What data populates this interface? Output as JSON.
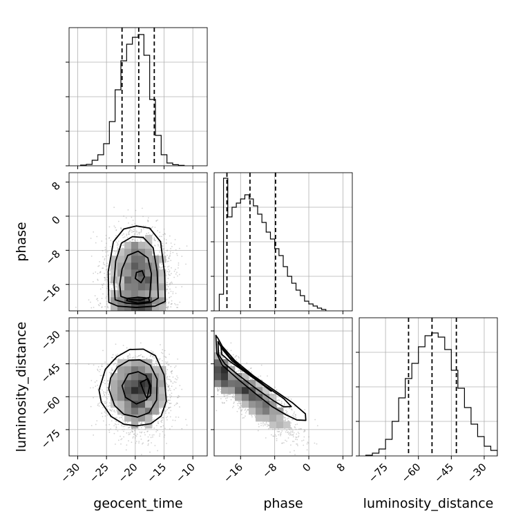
{
  "chart_data": {
    "type": "corner",
    "parameters": [
      "geocent_time",
      "phase",
      "luminosity_distance"
    ],
    "labels": {
      "geocent_time": "geocent_time",
      "phase": "phase",
      "luminosity_distance": "luminosity_distance"
    },
    "ranges": {
      "geocent_time": [
        -31.5,
        -7.5
      ],
      "phase": [
        -22.2,
        10.2
      ],
      "luminosity_distance": [
        -87,
        -24
      ]
    },
    "ticks": {
      "geocent_time": [
        -30,
        -25,
        -20,
        -15,
        -10
      ],
      "phase": [
        -16,
        -8,
        0,
        8
      ],
      "luminosity_distance": [
        -75,
        -60,
        -45,
        -30
      ]
    },
    "tick_labels": {
      "geocent_time": [
        "−30",
        "−25",
        "−20",
        "−15",
        "−10"
      ],
      "phase": [
        "−16",
        "−8",
        "0",
        "8"
      ],
      "luminosity_distance": [
        "−75",
        "−60",
        "−45",
        "−30"
      ]
    },
    "grid": true,
    "quantiles": {
      "geocent_time": [
        -22.3,
        -19.4,
        -16.7
      ],
      "phase": [
        -19.2,
        -13.8,
        -7.8
      ],
      "luminosity_distance": [
        -64.5,
        -53.8,
        -42.7
      ]
    },
    "histograms": {
      "geocent_time": {
        "edges": [
          -29.5,
          -28.5,
          -27.5,
          -26.5,
          -25.5,
          -24.5,
          -23.5,
          -22.5,
          -21.5,
          -20.5,
          -19.5,
          -18.5,
          -17.5,
          -16.5,
          -15.5,
          -14.5,
          -13.5,
          -12.5,
          -11.5
        ],
        "counts": [
          0.005,
          0.01,
          0.04,
          0.08,
          0.16,
          0.32,
          0.55,
          0.76,
          0.88,
          0.93,
          0.95,
          0.8,
          0.48,
          0.22,
          0.08,
          0.02,
          0.008,
          0.003
        ]
      },
      "phase": {
        "edges": [
          -21.0,
          -20.0,
          -19.0,
          -18.0,
          -17.0,
          -16.0,
          -15.0,
          -14.0,
          -13.0,
          -12.0,
          -11.0,
          -10.0,
          -9.0,
          -8.0,
          -7.0,
          -6.0,
          -5.0,
          -4.0,
          -3.0,
          -2.0,
          -1.0,
          0.0,
          1.0,
          2.0,
          3.0,
          4.0
        ],
        "counts": [
          0.12,
          0.96,
          0.68,
          0.75,
          0.78,
          0.81,
          0.84,
          0.81,
          0.76,
          0.7,
          0.64,
          0.57,
          0.52,
          0.45,
          0.4,
          0.32,
          0.25,
          0.2,
          0.15,
          0.11,
          0.07,
          0.05,
          0.035,
          0.02,
          0.01
        ]
      },
      "luminosity_distance": {
        "edges": [
          -84,
          -81,
          -78,
          -75,
          -72,
          -69,
          -66,
          -63,
          -60,
          -57,
          -54,
          -51,
          -48,
          -45,
          -42,
          -39,
          -36,
          -33,
          -30,
          -27,
          -24
        ],
        "counts": [
          0.005,
          0.02,
          0.05,
          0.12,
          0.25,
          0.42,
          0.56,
          0.67,
          0.79,
          0.87,
          0.89,
          0.86,
          0.77,
          0.62,
          0.49,
          0.35,
          0.23,
          0.14,
          0.07,
          0.04
        ]
      }
    },
    "pairs": [
      {
        "x": "geocent_time",
        "y": "phase",
        "contour_levels": [
          {
            "points": [
              [
                -24.6,
                -20.2
              ],
              [
                -23.0,
                -21.1
              ],
              [
                -19.8,
                -21.4
              ],
              [
                -16.6,
                -21.1
              ],
              [
                -14.8,
                -20.0
              ],
              [
                -14.9,
                -13.5
              ],
              [
                -15.6,
                -6.0
              ],
              [
                -17.5,
                -2.8
              ],
              [
                -19.8,
                -2.3
              ],
              [
                -22.0,
                -3.0
              ],
              [
                -23.8,
                -6.0
              ],
              [
                -24.7,
                -13.0
              ]
            ]
          },
          {
            "points": [
              [
                -23.5,
                -19.6
              ],
              [
                -21.5,
                -20.4
              ],
              [
                -19.6,
                -20.6
              ],
              [
                -17.4,
                -20.3
              ],
              [
                -16.0,
                -19.2
              ],
              [
                -16.2,
                -13.0
              ],
              [
                -16.9,
                -7.4
              ],
              [
                -18.6,
                -5.0
              ],
              [
                -20.5,
                -4.8
              ],
              [
                -22.4,
                -6.3
              ],
              [
                -23.4,
                -10.5
              ],
              [
                -23.7,
                -15.5
              ]
            ]
          },
          {
            "points": [
              [
                -22.5,
                -18.8
              ],
              [
                -20.8,
                -19.6
              ],
              [
                -19.1,
                -19.7
              ],
              [
                -17.5,
                -19.0
              ],
              [
                -17.2,
                -13.5
              ],
              [
                -17.8,
                -9.8
              ],
              [
                -19.5,
                -8.2
              ],
              [
                -21.3,
                -9.2
              ],
              [
                -22.3,
                -12.4
              ],
              [
                -22.7,
                -16.0
              ]
            ]
          },
          {
            "points": [
              [
                -21.5,
                -19.8
              ],
              [
                -19.5,
                -20.4
              ],
              [
                -17.5,
                -20.0
              ],
              [
                -17.7,
                -19.2
              ],
              [
                -19.5,
                -19.0
              ],
              [
                -21.3,
                -19.3
              ]
            ]
          },
          {
            "points": [
              [
                -20.0,
                -14.6
              ],
              [
                -19.0,
                -15.6
              ],
              [
                -18.4,
                -14.2
              ],
              [
                -18.8,
                -12.8
              ],
              [
                -19.8,
                -13.2
              ]
            ]
          }
        ]
      },
      {
        "x": "geocent_time",
        "y": "luminosity_distance",
        "contour_levels": [
          {
            "points": [
              [
                -26.3,
                -57.0
              ],
              [
                -25.9,
                -62.5
              ],
              [
                -24.2,
                -69.0
              ],
              [
                -22.0,
                -72.5
              ],
              [
                -19.8,
                -73.3
              ],
              [
                -17.3,
                -72.3
              ],
              [
                -15.5,
                -68.8
              ],
              [
                -14.6,
                -62.0
              ],
              [
                -15.0,
                -50.0
              ],
              [
                -16.5,
                -41.3
              ],
              [
                -18.6,
                -38.3
              ],
              [
                -21.0,
                -38.5
              ],
              [
                -23.2,
                -41.8
              ],
              [
                -25.2,
                -47.5
              ]
            ]
          },
          {
            "points": [
              [
                -24.6,
                -56.5
              ],
              [
                -23.6,
                -64.0
              ],
              [
                -22.0,
                -68.0
              ],
              [
                -19.6,
                -69.3
              ],
              [
                -17.6,
                -67.3
              ],
              [
                -16.3,
                -61.5
              ],
              [
                -16.2,
                -52.0
              ],
              [
                -17.4,
                -45.6
              ],
              [
                -19.2,
                -43.2
              ],
              [
                -21.1,
                -43.4
              ],
              [
                -23.1,
                -46.5
              ],
              [
                -24.3,
                -51.5
              ]
            ]
          },
          {
            "points": [
              [
                -22.3,
                -55.0
              ],
              [
                -21.7,
                -60.3
              ],
              [
                -19.8,
                -63.3
              ],
              [
                -18.0,
                -61.3
              ],
              [
                -17.5,
                -55.0
              ],
              [
                -18.1,
                -50.4
              ],
              [
                -19.5,
                -48.6
              ],
              [
                -21.2,
                -49.7
              ]
            ]
          },
          {
            "points": [
              [
                -19.1,
                -53.5
              ],
              [
                -18.6,
                -57.2
              ],
              [
                -18.0,
                -60.8
              ],
              [
                -17.4,
                -59.5
              ],
              [
                -17.3,
                -55.0
              ],
              [
                -17.8,
                -51.8
              ]
            ]
          }
        ]
      },
      {
        "x": "phase",
        "y": "luminosity_distance",
        "contour_levels": [
          {
            "points": [
              [
                -21.8,
                -32.0
              ],
              [
                -21.6,
                -40.2
              ],
              [
                -20.3,
                -45.6
              ],
              [
                -16.6,
                -52.0
              ],
              [
                -12.5,
                -58.6
              ],
              [
                -8.6,
                -64.5
              ],
              [
                -5.4,
                -68.2
              ],
              [
                -2.8,
                -70.6
              ],
              [
                -0.7,
                -70.8
              ],
              [
                -0.8,
                -67.8
              ],
              [
                -3.8,
                -62.8
              ],
              [
                -8.3,
                -56.8
              ],
              [
                -12.8,
                -50.7
              ],
              [
                -17.3,
                -43.6
              ],
              [
                -20.3,
                -37.0
              ],
              [
                -21.3,
                -33.4
              ]
            ]
          },
          {
            "points": [
              [
                -21.3,
                -34.8
              ],
              [
                -21.2,
                -40.7
              ],
              [
                -19.7,
                -45.0
              ],
              [
                -16.6,
                -50.0
              ],
              [
                -12.5,
                -56.1
              ],
              [
                -8.3,
                -61.8
              ],
              [
                -5.9,
                -64.6
              ],
              [
                -4.1,
                -64.5
              ],
              [
                -5.9,
                -60.8
              ],
              [
                -10.0,
                -55.3
              ],
              [
                -14.4,
                -49.2
              ],
              [
                -18.1,
                -43.5
              ],
              [
                -20.1,
                -38.8
              ]
            ]
          },
          {
            "points": [
              [
                -20.6,
                -37.0
              ],
              [
                -20.4,
                -40.7
              ],
              [
                -18.6,
                -43.8
              ],
              [
                -15.4,
                -48.1
              ],
              [
                -11.6,
                -53.4
              ],
              [
                -8.8,
                -57.5
              ],
              [
                -9.9,
                -55.6
              ],
              [
                -12.6,
                -51.4
              ],
              [
                -15.9,
                -46.6
              ],
              [
                -18.6,
                -41.8
              ],
              [
                -20.0,
                -38.3
              ]
            ]
          }
        ]
      }
    ]
  }
}
